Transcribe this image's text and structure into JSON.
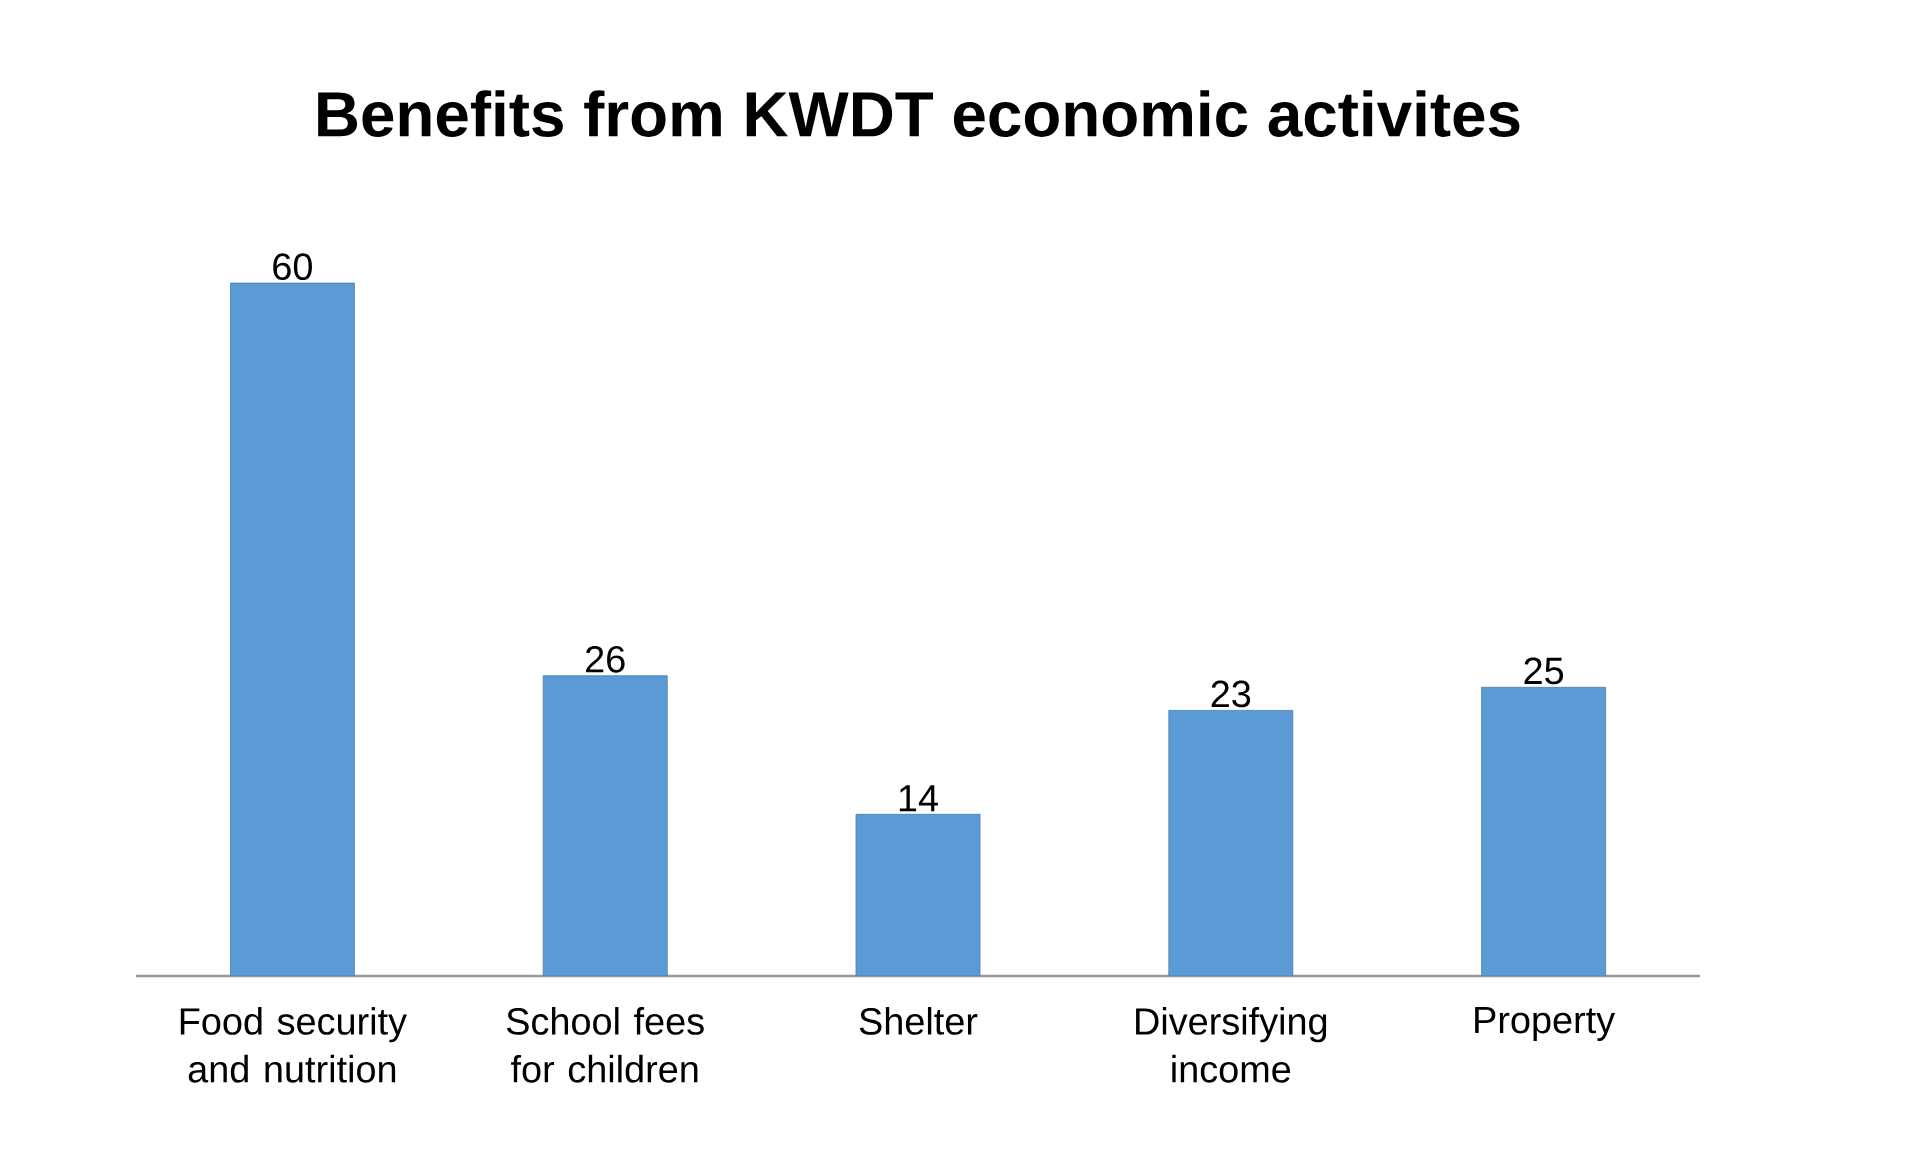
{
  "chart_data": {
    "type": "bar",
    "title": "Benefits from KWDT economic activites",
    "categories": [
      "Food security and nutrition",
      "School fees for children",
      "Shelter",
      "Diversifying income",
      "Property"
    ],
    "values": [
      60,
      26,
      14,
      23,
      25
    ],
    "color": "#5b9bd5",
    "data_labels": true,
    "grid": false
  }
}
